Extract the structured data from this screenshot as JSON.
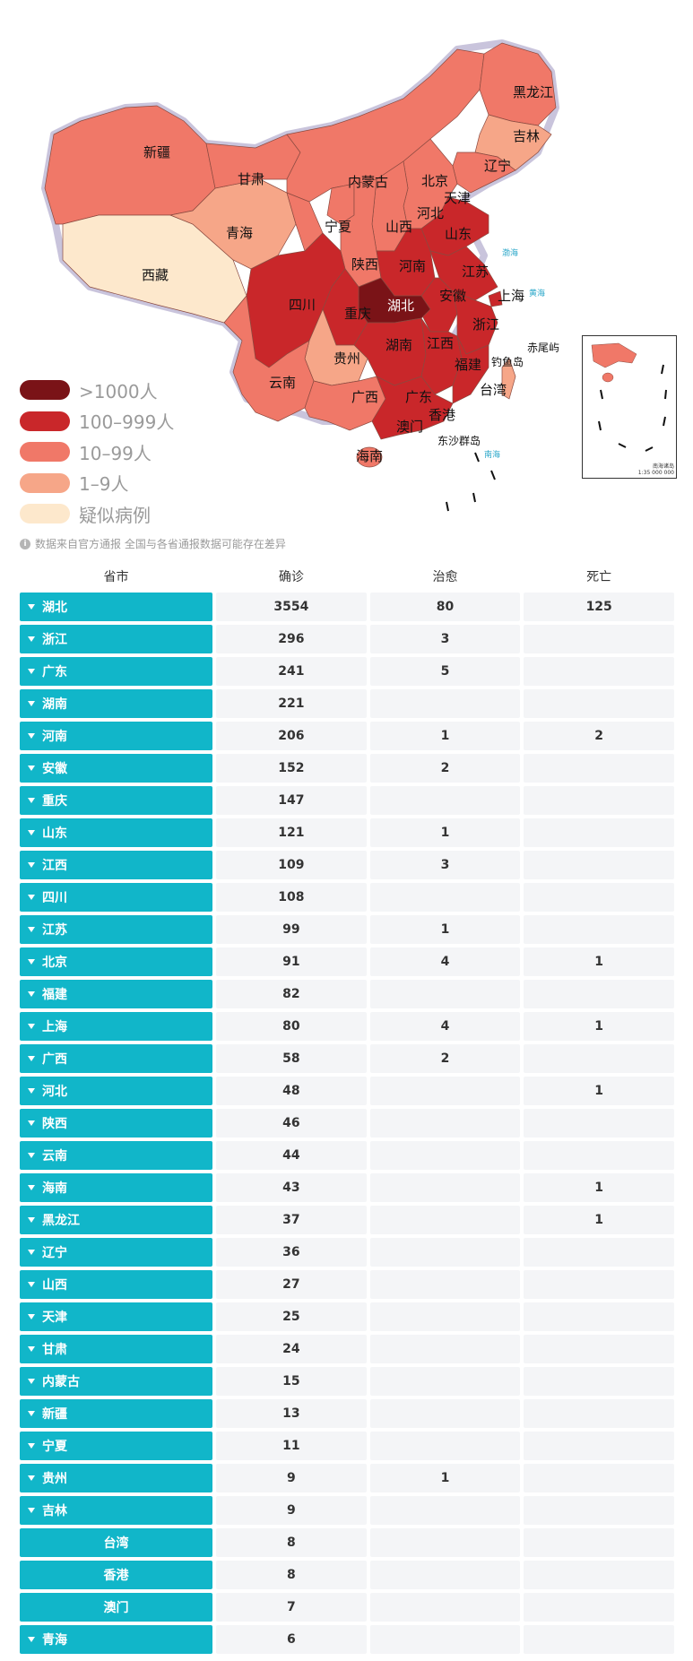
{
  "map": {
    "labels": {
      "xinjiang": "新疆",
      "xizang": "西藏",
      "qinghai": "青海",
      "gansu": "甘肃",
      "neimenggu": "内蒙古",
      "heilongjiang": "黑龙江",
      "jilin": "吉林",
      "liaoning": "辽宁",
      "beijing": "北京",
      "tianjin": "天津",
      "hebei": "河北",
      "shanxi": "山西",
      "ningxia": "宁夏",
      "shaanxi": "陕西",
      "shandong": "山东",
      "henan": "河南",
      "jiangsu": "江苏",
      "anhui": "安徽",
      "shanghai": "上海",
      "zhejiang": "浙江",
      "hubei": "湖北",
      "sichuan": "四川",
      "chongqing": "重庆",
      "hunan": "湖南",
      "jiangxi": "江西",
      "guizhou": "贵州",
      "yunnan": "云南",
      "guangxi": "广西",
      "guangdong": "广东",
      "fujian": "福建",
      "taiwan": "台湾",
      "hongkong": "香港",
      "macau": "澳门",
      "hainan": "海南",
      "diaoyu": "钓鱼岛",
      "chiwei": "赤尾屿",
      "dongsha": "东沙群岛"
    },
    "inset_caption_1": "南海诸岛",
    "inset_caption_2": "1:35 000 000"
  },
  "legend": [
    {
      "label": ">1000人",
      "color": "#7a1317"
    },
    {
      "label": "100–999人",
      "color": "#c9272a"
    },
    {
      "label": "10–99人",
      "color": "#f07868"
    },
    {
      "label": "1–9人",
      "color": "#f6a688"
    },
    {
      "label": "疑似病例",
      "color": "#fde8cc"
    }
  ],
  "source_note": "数据来自官方通报 全国与各省通报数据可能存在差异",
  "table": {
    "headers": {
      "province": "省市",
      "confirmed": "确诊",
      "cured": "治愈",
      "dead": "死亡"
    },
    "rows": [
      {
        "name": "湖北",
        "confirmed": "3554",
        "cured": "80",
        "dead": "125",
        "caret": true
      },
      {
        "name": "浙江",
        "confirmed": "296",
        "cured": "3",
        "dead": "",
        "caret": true
      },
      {
        "name": "广东",
        "confirmed": "241",
        "cured": "5",
        "dead": "",
        "caret": true
      },
      {
        "name": "湖南",
        "confirmed": "221",
        "cured": "",
        "dead": "",
        "caret": true
      },
      {
        "name": "河南",
        "confirmed": "206",
        "cured": "1",
        "dead": "2",
        "caret": true
      },
      {
        "name": "安徽",
        "confirmed": "152",
        "cured": "2",
        "dead": "",
        "caret": true
      },
      {
        "name": "重庆",
        "confirmed": "147",
        "cured": "",
        "dead": "",
        "caret": true
      },
      {
        "name": "山东",
        "confirmed": "121",
        "cured": "1",
        "dead": "",
        "caret": true
      },
      {
        "name": "江西",
        "confirmed": "109",
        "cured": "3",
        "dead": "",
        "caret": true
      },
      {
        "name": "四川",
        "confirmed": "108",
        "cured": "",
        "dead": "",
        "caret": true
      },
      {
        "name": "江苏",
        "confirmed": "99",
        "cured": "1",
        "dead": "",
        "caret": true
      },
      {
        "name": "北京",
        "confirmed": "91",
        "cured": "4",
        "dead": "1",
        "caret": true
      },
      {
        "name": "福建",
        "confirmed": "82",
        "cured": "",
        "dead": "",
        "caret": true
      },
      {
        "name": "上海",
        "confirmed": "80",
        "cured": "4",
        "dead": "1",
        "caret": true
      },
      {
        "name": "广西",
        "confirmed": "58",
        "cured": "2",
        "dead": "",
        "caret": true
      },
      {
        "name": "河北",
        "confirmed": "48",
        "cured": "",
        "dead": "1",
        "caret": true
      },
      {
        "name": "陕西",
        "confirmed": "46",
        "cured": "",
        "dead": "",
        "caret": true
      },
      {
        "name": "云南",
        "confirmed": "44",
        "cured": "",
        "dead": "",
        "caret": true
      },
      {
        "name": "海南",
        "confirmed": "43",
        "cured": "",
        "dead": "1",
        "caret": true
      },
      {
        "name": "黑龙江",
        "confirmed": "37",
        "cured": "",
        "dead": "1",
        "caret": true
      },
      {
        "name": "辽宁",
        "confirmed": "36",
        "cured": "",
        "dead": "",
        "caret": true
      },
      {
        "name": "山西",
        "confirmed": "27",
        "cured": "",
        "dead": "",
        "caret": true
      },
      {
        "name": "天津",
        "confirmed": "25",
        "cured": "",
        "dead": "",
        "caret": true
      },
      {
        "name": "甘肃",
        "confirmed": "24",
        "cured": "",
        "dead": "",
        "caret": true
      },
      {
        "name": "内蒙古",
        "confirmed": "15",
        "cured": "",
        "dead": "",
        "caret": true
      },
      {
        "name": "新疆",
        "confirmed": "13",
        "cured": "",
        "dead": "",
        "caret": true
      },
      {
        "name": "宁夏",
        "confirmed": "11",
        "cured": "",
        "dead": "",
        "caret": true
      },
      {
        "name": "贵州",
        "confirmed": "9",
        "cured": "1",
        "dead": "",
        "caret": true
      },
      {
        "name": "吉林",
        "confirmed": "9",
        "cured": "",
        "dead": "",
        "caret": true
      },
      {
        "name": "台湾",
        "confirmed": "8",
        "cured": "",
        "dead": "",
        "caret": false
      },
      {
        "name": "香港",
        "confirmed": "8",
        "cured": "",
        "dead": "",
        "caret": false
      },
      {
        "name": "澳门",
        "confirmed": "7",
        "cured": "",
        "dead": "",
        "caret": false
      },
      {
        "name": "青海",
        "confirmed": "6",
        "cured": "",
        "dead": "",
        "caret": true
      }
    ]
  }
}
